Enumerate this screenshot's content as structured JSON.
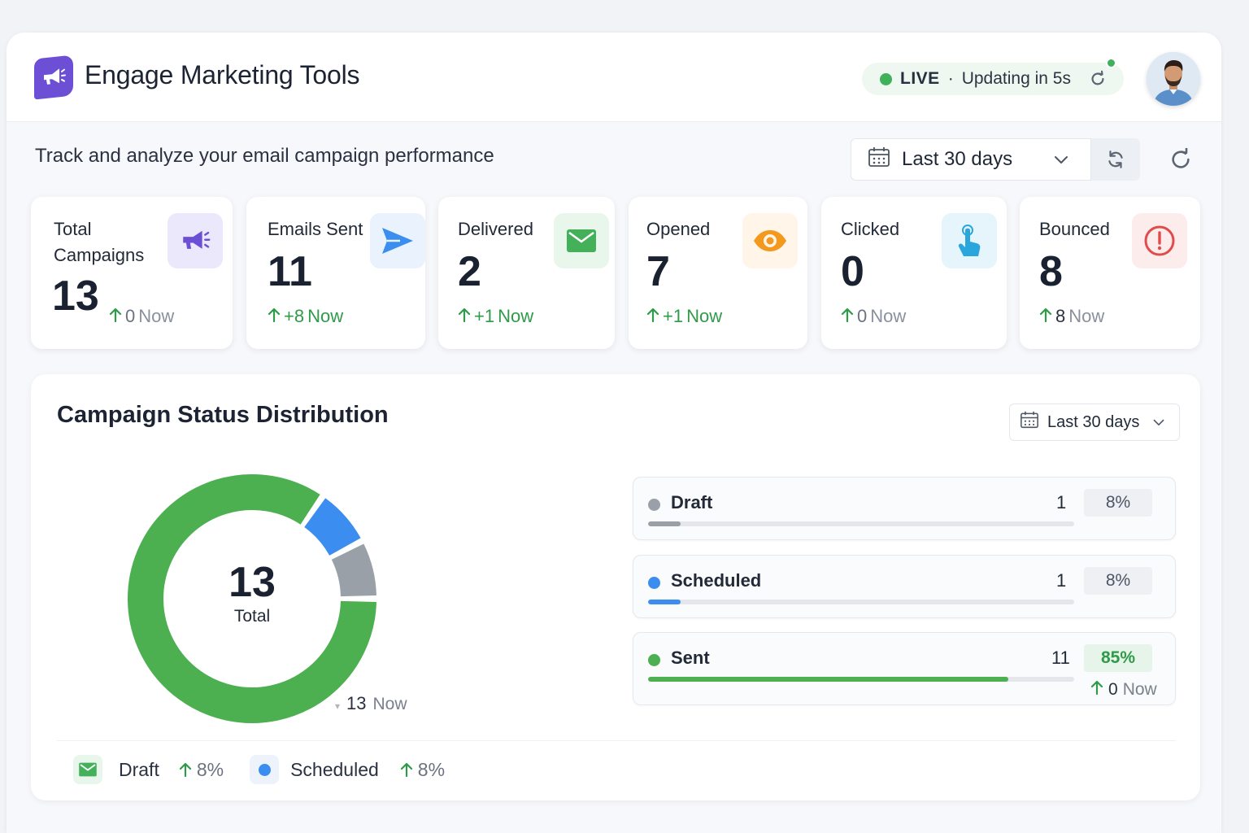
{
  "header": {
    "title": "Engage Marketing Tools",
    "logo_icon": "megaphone-icon",
    "live": {
      "label": "LIVE",
      "separator": "·",
      "updating": "Updating in 5s"
    },
    "avatar_icon": "user-avatar"
  },
  "subtitle": "Track and analyze your email campaign performance",
  "range": {
    "label": "Last 30 days"
  },
  "cards": [
    {
      "label": "Total Campaigns",
      "value": "13",
      "delta": "0",
      "now": "Now",
      "icon": "megaphone-icon",
      "color": "#6d4fd6"
    },
    {
      "label": "Emails Sent",
      "value": "11",
      "delta": "+8",
      "now": "Now",
      "icon": "send-icon",
      "color": "#3b8ef0"
    },
    {
      "label": "Delivered",
      "value": "2",
      "delta": "+1",
      "now": "Now",
      "icon": "mail-icon",
      "color": "#45b05a"
    },
    {
      "label": "Opened",
      "value": "7",
      "delta": "+1",
      "now": "Now",
      "icon": "eye-icon",
      "color": "#f39a1e"
    },
    {
      "label": "Clicked",
      "value": "0",
      "delta": "0",
      "now": "Now",
      "icon": "pointer-icon",
      "color": "#2aa6dc"
    },
    {
      "label": "Bounced",
      "value": "8",
      "delta": "8",
      "now": "Now",
      "icon": "alert-icon",
      "color": "#e04b4b"
    }
  ],
  "panel": {
    "title": "Campaign Status Distribution",
    "range_label": "Last 30 days",
    "total_value": "13",
    "total_label": "Total",
    "total_now_value": "13",
    "total_now_label": "Now",
    "statuses": [
      {
        "name": "Draft",
        "count": "1",
        "pct": "8%",
        "fraction": 0.0769,
        "color": "#9aa0a8"
      },
      {
        "name": "Scheduled",
        "count": "1",
        "pct": "8%",
        "fraction": 0.0769,
        "color": "#3b8ef0"
      },
      {
        "name": "Sent",
        "count": "11",
        "pct": "85%",
        "fraction": 0.8462,
        "color": "#4caf50",
        "sub_value": "0",
        "sub_now": "Now"
      }
    ],
    "legend": [
      {
        "name": "Draft",
        "pct": "8%",
        "icon": "mail-icon"
      },
      {
        "name": "Scheduled",
        "pct": "8%",
        "icon": "dot-icon"
      }
    ]
  }
}
